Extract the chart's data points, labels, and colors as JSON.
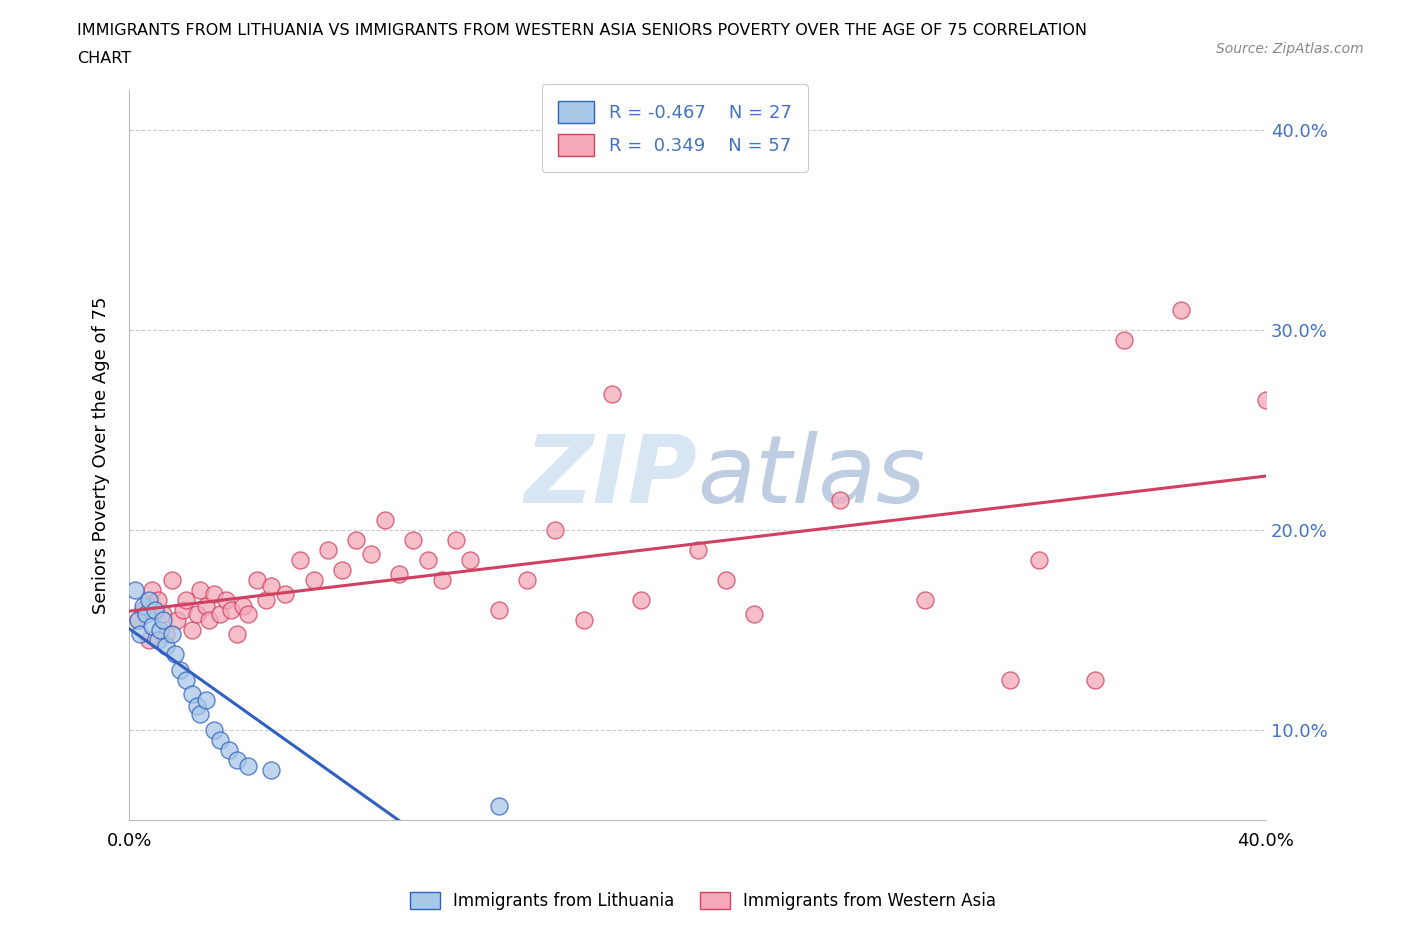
{
  "title_line1": "IMMIGRANTS FROM LITHUANIA VS IMMIGRANTS FROM WESTERN ASIA SENIORS POVERTY OVER THE AGE OF 75 CORRELATION",
  "title_line2": "CHART",
  "source": "Source: ZipAtlas.com",
  "ylabel": "Seniors Poverty Over the Age of 75",
  "xlim": [
    0.0,
    0.4
  ],
  "ylim": [
    0.055,
    0.42
  ],
  "yticks": [
    0.1,
    0.2,
    0.3,
    0.4
  ],
  "ytick_labels": [
    "10.0%",
    "20.0%",
    "30.0%",
    "40.0%"
  ],
  "xticks": [
    0.0,
    0.05,
    0.1,
    0.15,
    0.2,
    0.25,
    0.3,
    0.35,
    0.4
  ],
  "watermark": "ZIPatlas",
  "color_lithuania": "#a8c8e8",
  "color_western_asia": "#f4a8b8",
  "color_line_lithuania": "#3060c0",
  "color_line_western_asia": "#d04060",
  "label_lithuania": "Immigrants from Lithuania",
  "label_western_asia": "Immigrants from Western Asia",
  "lithuania_x": [
    0.002,
    0.003,
    0.004,
    0.005,
    0.006,
    0.007,
    0.008,
    0.009,
    0.01,
    0.011,
    0.012,
    0.013,
    0.015,
    0.016,
    0.018,
    0.02,
    0.022,
    0.024,
    0.025,
    0.027,
    0.03,
    0.032,
    0.035,
    0.038,
    0.042,
    0.05,
    0.13
  ],
  "lithuania_y": [
    0.17,
    0.155,
    0.148,
    0.162,
    0.158,
    0.165,
    0.152,
    0.16,
    0.145,
    0.15,
    0.155,
    0.142,
    0.148,
    0.138,
    0.13,
    0.125,
    0.118,
    0.112,
    0.108,
    0.115,
    0.1,
    0.095,
    0.09,
    0.085,
    0.082,
    0.08,
    0.062
  ],
  "western_asia_x": [
    0.003,
    0.005,
    0.007,
    0.008,
    0.01,
    0.012,
    0.013,
    0.015,
    0.017,
    0.019,
    0.02,
    0.022,
    0.024,
    0.025,
    0.027,
    0.028,
    0.03,
    0.032,
    0.034,
    0.036,
    0.038,
    0.04,
    0.042,
    0.045,
    0.048,
    0.05,
    0.055,
    0.06,
    0.065,
    0.07,
    0.075,
    0.08,
    0.085,
    0.09,
    0.095,
    0.1,
    0.105,
    0.11,
    0.115,
    0.12,
    0.13,
    0.14,
    0.15,
    0.16,
    0.17,
    0.18,
    0.2,
    0.21,
    0.22,
    0.25,
    0.28,
    0.31,
    0.32,
    0.34,
    0.35,
    0.37,
    0.4
  ],
  "western_asia_y": [
    0.155,
    0.16,
    0.145,
    0.17,
    0.165,
    0.158,
    0.148,
    0.175,
    0.155,
    0.16,
    0.165,
    0.15,
    0.158,
    0.17,
    0.162,
    0.155,
    0.168,
    0.158,
    0.165,
    0.16,
    0.148,
    0.162,
    0.158,
    0.175,
    0.165,
    0.172,
    0.168,
    0.185,
    0.175,
    0.19,
    0.18,
    0.195,
    0.188,
    0.205,
    0.178,
    0.195,
    0.185,
    0.175,
    0.195,
    0.185,
    0.16,
    0.175,
    0.2,
    0.155,
    0.268,
    0.165,
    0.19,
    0.175,
    0.158,
    0.215,
    0.165,
    0.125,
    0.185,
    0.125,
    0.295,
    0.31,
    0.265
  ]
}
